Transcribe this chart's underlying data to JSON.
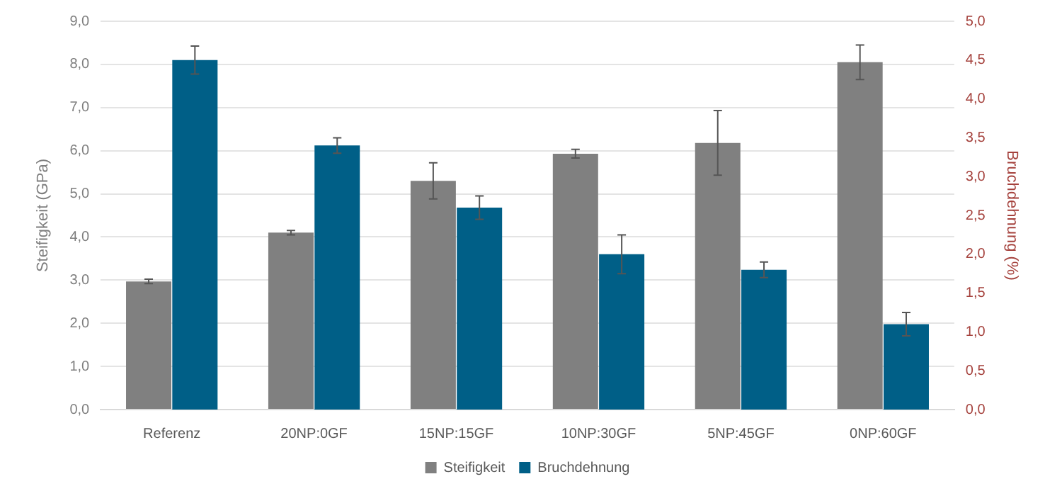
{
  "chart_data": {
    "type": "bar",
    "categories": [
      "Referenz",
      "20NP:0GF",
      "15NP:15GF",
      "10NP:30GF",
      "5NP:45GF",
      "0NP:60GF"
    ],
    "ylabel": "Steifigkeit (GPa)",
    "y2label": "Bruchdehnung (%)",
    "series": [
      {
        "name": "Steifigkeit",
        "color": "#808080",
        "values": [
          2.97,
          4.1,
          5.3,
          5.93,
          6.18,
          8.05
        ],
        "errors": [
          0.05,
          0.05,
          0.42,
          0.1,
          0.75,
          0.4
        ]
      },
      {
        "name": "Bruchdehnung",
        "color": "#005f87",
        "axis": "y2",
        "values": [
          4.5,
          3.4,
          2.6,
          2.0,
          1.8,
          1.1
        ],
        "errors": [
          0.18,
          0.1,
          0.15,
          0.25,
          0.1,
          0.15
        ]
      }
    ],
    "ylim": [
      0,
      9
    ],
    "yticks": [
      {
        "value": 0,
        "label": "0,0"
      },
      {
        "value": 1,
        "label": "1,0"
      },
      {
        "value": 2,
        "label": "2,0"
      },
      {
        "value": 3,
        "label": "3,0"
      },
      {
        "value": 4,
        "label": "4,0"
      },
      {
        "value": 5,
        "label": "5,0"
      },
      {
        "value": 6,
        "label": "6,0"
      },
      {
        "value": 7,
        "label": "7,0"
      },
      {
        "value": 8,
        "label": "8,0"
      },
      {
        "value": 9,
        "label": "9,0"
      }
    ],
    "y2lim": [
      0,
      5
    ],
    "y2ticks": [
      {
        "value": 0,
        "label": "0,0"
      },
      {
        "value": 0.5,
        "label": "0,5"
      },
      {
        "value": 1,
        "label": "1,0"
      },
      {
        "value": 1.5,
        "label": "1,5"
      },
      {
        "value": 2,
        "label": "2,0"
      },
      {
        "value": 2.5,
        "label": "2,5"
      },
      {
        "value": 3,
        "label": "3,0"
      },
      {
        "value": 3.5,
        "label": "3,5"
      },
      {
        "value": 4,
        "label": "4,0"
      },
      {
        "value": 4.5,
        "label": "4,5"
      },
      {
        "value": 5,
        "label": "5,0"
      }
    ],
    "grid": "y",
    "legend": "bottom"
  }
}
